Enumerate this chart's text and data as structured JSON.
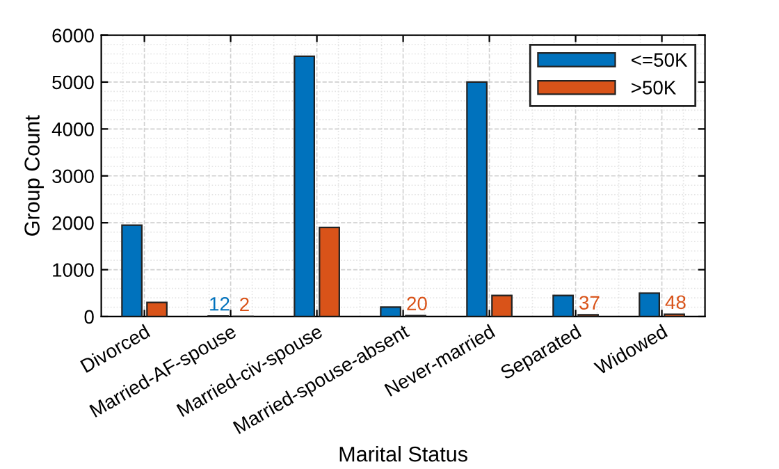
{
  "chart_data": {
    "type": "bar",
    "xlabel": "Marital Status",
    "ylabel": "Group Count",
    "categories": [
      "Divorced",
      "Married-AF-spouse",
      "Married-civ-spouse",
      "Married-spouse-absent",
      "Never-married",
      "Separated",
      "Widowed"
    ],
    "series": [
      {
        "name": "<=50K",
        "color": "#0072bd",
        "values": [
          1950,
          12,
          5550,
          200,
          5000,
          450,
          500
        ],
        "value_labels": [
          null,
          "12",
          null,
          null,
          null,
          null,
          null
        ]
      },
      {
        "name": ">50K",
        "color": "#d95319",
        "values": [
          300,
          2,
          1900,
          20,
          450,
          37,
          48
        ],
        "value_labels": [
          null,
          "2",
          null,
          "20",
          null,
          "37",
          "48"
        ]
      }
    ],
    "ylim": [
      0,
      6000
    ],
    "yticks": [
      0,
      1000,
      2000,
      3000,
      4000,
      5000,
      6000
    ],
    "grid": true,
    "legend": "top right"
  }
}
